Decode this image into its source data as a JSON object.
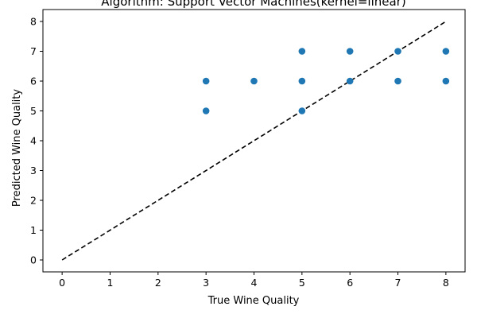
{
  "chart_data": {
    "type": "scatter",
    "title": "Algorithm: Support Vector Machines(kernel=linear)",
    "xlabel": "True Wine Quality",
    "ylabel": "Predicted Wine Quality",
    "xlim": [
      -0.4,
      8.4
    ],
    "ylim": [
      -0.4,
      8.4
    ],
    "xticks": [
      "0",
      "1",
      "2",
      "3",
      "4",
      "5",
      "6",
      "7",
      "8"
    ],
    "yticks": [
      "0",
      "1",
      "2",
      "3",
      "4",
      "5",
      "6",
      "7",
      "8"
    ],
    "grid": false,
    "series": [
      {
        "points": [
          {
            "x": 3,
            "y": 6
          },
          {
            "x": 3,
            "y": 5
          },
          {
            "x": 4,
            "y": 6
          },
          {
            "x": 5,
            "y": 7
          },
          {
            "x": 5,
            "y": 6
          },
          {
            "x": 5,
            "y": 5
          },
          {
            "x": 6,
            "y": 7
          },
          {
            "x": 6,
            "y": 6
          },
          {
            "x": 7,
            "y": 7
          },
          {
            "x": 7,
            "y": 6
          },
          {
            "x": 8,
            "y": 7
          },
          {
            "x": 8,
            "y": 6
          }
        ],
        "color": "#1f77b4"
      }
    ],
    "reference_line": {
      "x": [
        0,
        8
      ],
      "y": [
        0,
        8
      ],
      "style": "dashed",
      "color": "#000000"
    }
  }
}
